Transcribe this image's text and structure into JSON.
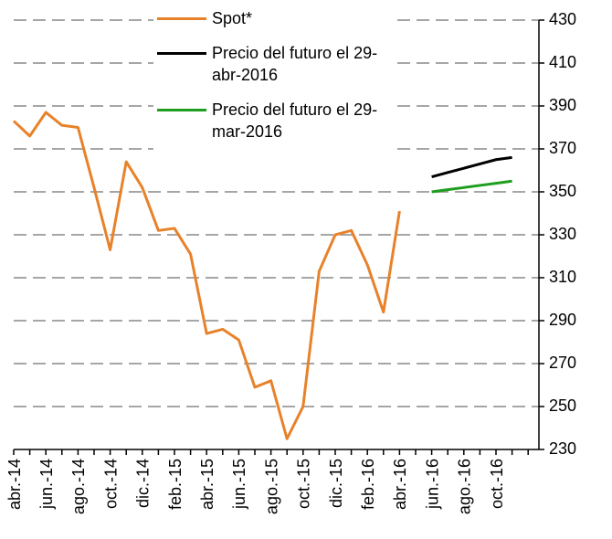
{
  "chart_data": {
    "type": "line",
    "categories": [
      "abr.-14",
      null,
      "jun.-14",
      null,
      "ago.-14",
      null,
      "oct.-14",
      null,
      "dic.-14",
      null,
      "feb.-15",
      null,
      "abr.-15",
      null,
      "jun.-15",
      null,
      "ago.-15",
      null,
      "oct.-15",
      null,
      "dic.-15",
      null,
      "feb.-16",
      null,
      "abr.-16",
      null,
      "jun.-16",
      null,
      "ago.-16",
      null,
      "oct.-16",
      null,
      null
    ],
    "series": [
      {
        "name": "Spot*",
        "color": "#e8822a",
        "values": [
          383,
          376,
          387,
          381,
          380,
          352,
          323,
          364,
          352,
          332,
          333,
          321,
          284,
          286,
          281,
          259,
          262,
          235,
          250,
          313,
          330,
          332,
          316,
          294,
          341,
          null,
          null,
          null,
          null,
          null,
          null,
          null,
          null
        ]
      },
      {
        "name": "Precio del futuro el 29-abr-2016",
        "color": "#000000",
        "values": [
          null,
          null,
          null,
          null,
          null,
          null,
          null,
          null,
          null,
          null,
          null,
          null,
          null,
          null,
          null,
          null,
          null,
          null,
          null,
          null,
          null,
          null,
          null,
          null,
          null,
          null,
          357,
          359,
          361,
          363,
          365,
          366,
          null
        ]
      },
      {
        "name": "Precio del futuro el 29-mar-2016",
        "color": "#1e9e1e",
        "values": [
          null,
          null,
          null,
          null,
          null,
          null,
          null,
          null,
          null,
          null,
          null,
          null,
          null,
          null,
          null,
          null,
          null,
          null,
          null,
          null,
          null,
          null,
          null,
          null,
          null,
          null,
          350,
          351,
          352,
          353,
          354,
          355,
          null
        ]
      }
    ],
    "ylim": [
      230,
      430
    ],
    "yticks": [
      230,
      250,
      270,
      290,
      310,
      330,
      350,
      370,
      390,
      410,
      430
    ],
    "grid": true
  }
}
